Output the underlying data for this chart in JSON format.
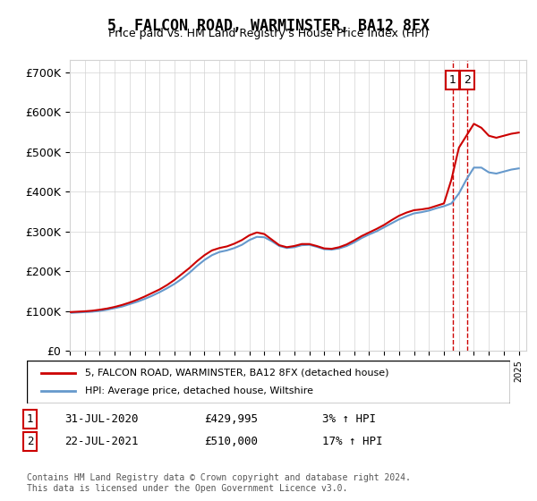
{
  "title": "5, FALCON ROAD, WARMINSTER, BA12 8FX",
  "subtitle": "Price paid vs. HM Land Registry's House Price Index (HPI)",
  "ylabel_ticks": [
    "£0",
    "£100K",
    "£200K",
    "£300K",
    "£400K",
    "£500K",
    "£600K",
    "£700K"
  ],
  "ytick_values": [
    0,
    100000,
    200000,
    300000,
    400000,
    500000,
    600000,
    700000
  ],
  "ylim": [
    0,
    730000
  ],
  "xlim_start": 1995.0,
  "xlim_end": 2025.5,
  "legend_property": "5, FALCON ROAD, WARMINSTER, BA12 8FX (detached house)",
  "legend_hpi": "HPI: Average price, detached house, Wiltshire",
  "sale1_date": "31-JUL-2020",
  "sale1_price": "£429,995",
  "sale1_pct": "3% ↑ HPI",
  "sale2_date": "22-JUL-2021",
  "sale2_price": "£510,000",
  "sale2_pct": "17% ↑ HPI",
  "footnote": "Contains HM Land Registry data © Crown copyright and database right 2024.\nThis data is licensed under the Open Government Licence v3.0.",
  "property_color": "#cc0000",
  "hpi_color": "#6699cc",
  "vline1_x": 2020.58,
  "vline2_x": 2021.55,
  "hpi_x": [
    1995,
    1995.5,
    1996,
    1996.5,
    1997,
    1997.5,
    1998,
    1998.5,
    1999,
    1999.5,
    2000,
    2000.5,
    2001,
    2001.5,
    2002,
    2002.5,
    2003,
    2003.5,
    2004,
    2004.5,
    2005,
    2005.5,
    2006,
    2006.5,
    2007,
    2007.5,
    2008,
    2008.5,
    2009,
    2009.5,
    2010,
    2010.5,
    2011,
    2011.5,
    2012,
    2012.5,
    2013,
    2013.5,
    2014,
    2014.5,
    2015,
    2015.5,
    2016,
    2016.5,
    2017,
    2017.5,
    2018,
    2018.5,
    2019,
    2019.5,
    2020,
    2020.5,
    2021,
    2021.5,
    2022,
    2022.5,
    2023,
    2023.5,
    2024,
    2024.5,
    2025
  ],
  "hpi_y": [
    95000,
    96000,
    97000,
    98000,
    100000,
    103000,
    107000,
    111000,
    117000,
    123000,
    130000,
    138000,
    147000,
    157000,
    168000,
    181000,
    196000,
    213000,
    228000,
    240000,
    248000,
    252000,
    258000,
    266000,
    278000,
    286000,
    285000,
    275000,
    263000,
    258000,
    260000,
    265000,
    266000,
    261000,
    255000,
    254000,
    257000,
    263000,
    272000,
    283000,
    292000,
    300000,
    310000,
    320000,
    330000,
    338000,
    345000,
    348000,
    352000,
    358000,
    363000,
    370000,
    395000,
    430000,
    460000,
    460000,
    448000,
    445000,
    450000,
    455000,
    458000
  ],
  "prop_x": [
    1995,
    1995.5,
    1996,
    1996.5,
    1997,
    1997.5,
    1998,
    1998.5,
    1999,
    1999.5,
    2000,
    2000.5,
    2001,
    2001.5,
    2002,
    2002.5,
    2003,
    2003.5,
    2004,
    2004.5,
    2005,
    2005.5,
    2006,
    2006.5,
    2007,
    2007.5,
    2008,
    2008.5,
    2009,
    2009.5,
    2010,
    2010.5,
    2011,
    2011.5,
    2012,
    2012.5,
    2013,
    2013.5,
    2014,
    2014.5,
    2015,
    2015.5,
    2016,
    2016.5,
    2017,
    2017.5,
    2018,
    2018.5,
    2019,
    2019.5,
    2020,
    2020.5,
    2021,
    2021.5,
    2022,
    2022.5,
    2023,
    2023.5,
    2024,
    2024.5,
    2025
  ],
  "prop_y": [
    97000,
    98000,
    99000,
    100500,
    103000,
    106000,
    110000,
    115000,
    121000,
    128000,
    136000,
    145000,
    154000,
    165000,
    178000,
    193000,
    208000,
    225000,
    240000,
    252000,
    258000,
    262000,
    269000,
    278000,
    290000,
    297000,
    293000,
    279000,
    265000,
    260000,
    263000,
    268000,
    268000,
    263000,
    257000,
    256000,
    260000,
    267000,
    277000,
    288000,
    297000,
    306000,
    316000,
    328000,
    339000,
    347000,
    353000,
    355000,
    358000,
    364000,
    370000,
    430000,
    510000,
    540000,
    570000,
    560000,
    540000,
    535000,
    540000,
    545000,
    548000
  ]
}
